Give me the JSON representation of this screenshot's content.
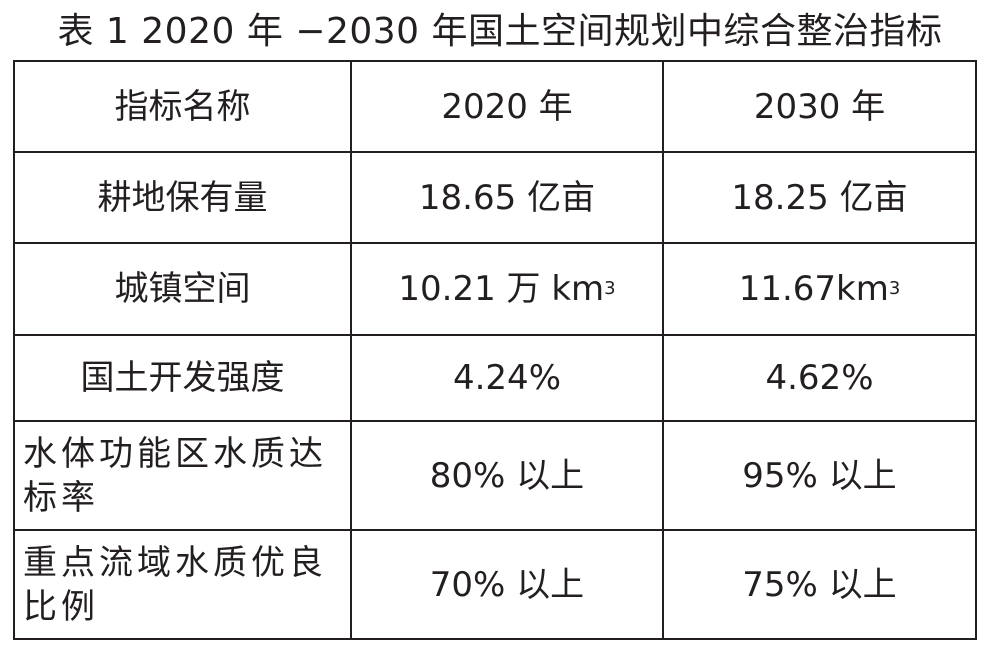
{
  "table": {
    "caption": "表 1 2020 年 −2030 年国土空间规划中综合整治指标",
    "header": {
      "name": "指标名称",
      "y2020": "2020 年",
      "y2030": "2030 年"
    },
    "rows": [
      {
        "name": "耕地保有量",
        "v2020": "18.65 亿亩",
        "v2030": "18.25 亿亩"
      },
      {
        "name": "城镇空间",
        "v2020": "10.21 万 km",
        "v2020_sup": "3",
        "v2030": "11.67km",
        "v2030_sup": "3"
      },
      {
        "name": "国土开发强度",
        "v2020": "4.24%",
        "v2030": "4.62%"
      },
      {
        "name": "水体功能区水质达标率",
        "v2020": "80% 以上",
        "v2030": "95% 以上"
      },
      {
        "name": "重点流域水质优良比例",
        "v2020": "70% 以上",
        "v2030": "75% 以上"
      }
    ]
  }
}
